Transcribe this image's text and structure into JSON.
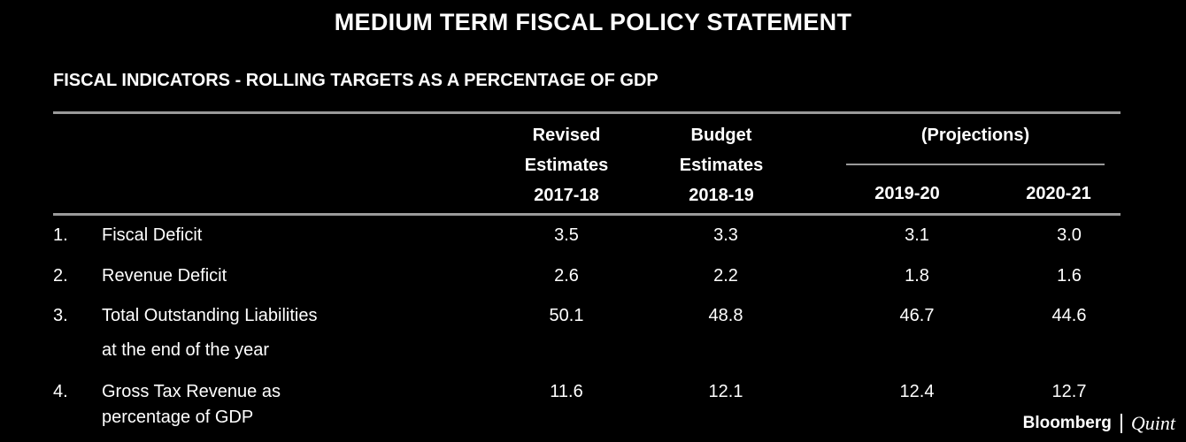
{
  "title": "MEDIUM TERM FISCAL POLICY STATEMENT",
  "subtitle": "FISCAL INDICATORS - ROLLING TARGETS AS A PERCENTAGE OF GDP",
  "columns": {
    "revised": [
      "Revised",
      "Estimates",
      "2017-18"
    ],
    "budget": [
      "Budget",
      "Estimates",
      "2018-19"
    ],
    "projections": "(Projections)",
    "proj1": "2019-20",
    "proj2": "2020-21"
  },
  "rows": [
    {
      "num": "1.",
      "label": [
        "Fiscal Deficit"
      ],
      "values": [
        "3.5",
        "3.3",
        "3.1",
        "3.0"
      ]
    },
    {
      "num": "2.",
      "label": [
        "Revenue Deficit"
      ],
      "values": [
        "2.6",
        "2.2",
        "1.8",
        "1.6"
      ]
    },
    {
      "num": "3.",
      "label": [
        "Total Outstanding Liabilities",
        "at the end of the year"
      ],
      "values": [
        "50.1",
        "48.8",
        "46.7",
        "44.6"
      ]
    },
    {
      "num": "4.",
      "label": [
        "Gross Tax Revenue as",
        "percentage of GDP"
      ],
      "values": [
        "11.6",
        "12.1",
        "12.4",
        "12.7"
      ]
    }
  ],
  "logo": {
    "brand": "Bloomberg",
    "partner": "Quint"
  }
}
